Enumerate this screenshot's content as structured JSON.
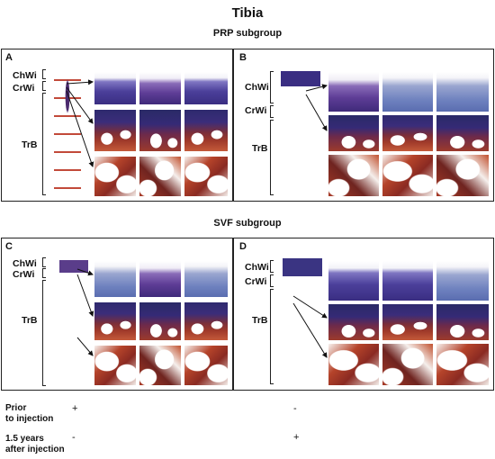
{
  "title": "Tibia",
  "groups": [
    {
      "subtitle": "PRP subgroup",
      "panels": [
        {
          "label": "A",
          "rows": [
            "ChWi",
            "CrWi",
            "TrB"
          ]
        },
        {
          "label": "B",
          "rows": [
            "ChWi",
            "CrWi",
            "TrB"
          ]
        }
      ]
    },
    {
      "subtitle": "SVF subgroup",
      "panels": [
        {
          "label": "C",
          "rows": [
            "ChWi",
            "CrWi",
            "TrB"
          ]
        },
        {
          "label": "D",
          "rows": [
            "ChWi",
            "CrWi",
            "TrB"
          ]
        }
      ]
    }
  ],
  "bottom": {
    "rows": [
      {
        "label": "Prior\nto injection",
        "left_sign": "+",
        "right_sign": "-"
      },
      {
        "label": "1.5 years\nafter injection",
        "left_sign": "-",
        "right_sign": "+"
      }
    ]
  },
  "stain_colors": {
    "chondral": "#4b3f9a",
    "bone": "#a03a2a",
    "background": "#ffffff"
  }
}
